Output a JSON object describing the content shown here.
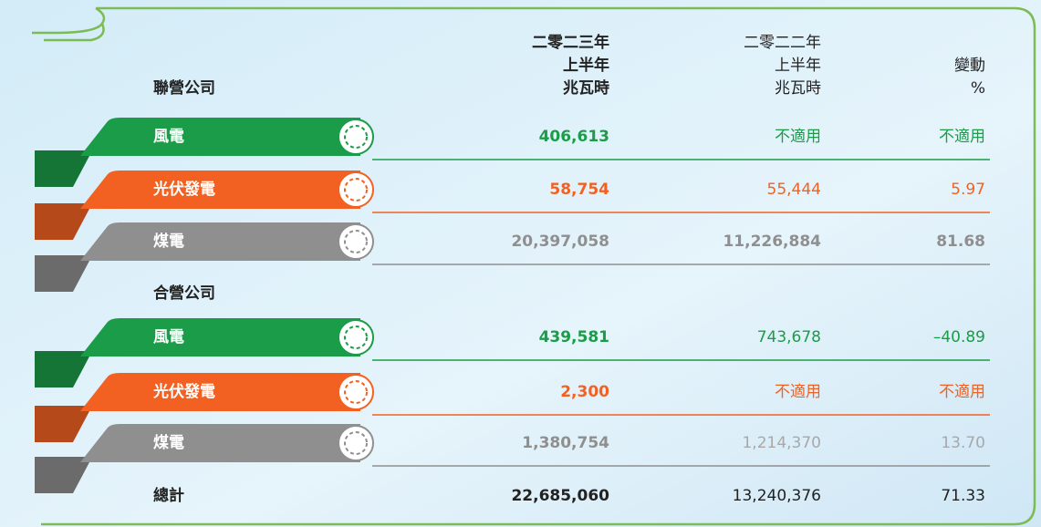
{
  "header": {
    "section": "聯營公司",
    "columns": [
      [
        "二零二三年",
        "上半年",
        "兆瓦時"
      ],
      [
        "二零二二年",
        "上半年",
        "兆瓦時"
      ],
      [
        "變動",
        "%"
      ]
    ]
  },
  "groups": [
    {
      "rows": [
        {
          "label": "風電",
          "color": "#1a9c48",
          "cells": [
            "406,613",
            "不適用",
            "不適用"
          ]
        },
        {
          "label": "光伏發電",
          "color": "#f26122",
          "cells": [
            "58,754",
            "55,444",
            "5.97"
          ]
        },
        {
          "label": "煤電",
          "color": "#8f8f8f",
          "cells": [
            "20,397,058",
            "11,226,884",
            "81.68"
          ]
        }
      ]
    },
    {
      "title": "合營公司",
      "rows": [
        {
          "label": "風電",
          "color": "#1a9c48",
          "cells": [
            "439,581",
            "743,678",
            "–40.89"
          ]
        },
        {
          "label": "光伏發電",
          "color": "#f26122",
          "cells": [
            "2,300",
            "不適用",
            "不適用"
          ]
        },
        {
          "label": "煤電",
          "color": "#8f8f8f",
          "cells": [
            "1,380,754",
            "1,214,370",
            "13.70"
          ]
        }
      ]
    }
  ],
  "total": {
    "label": "總計",
    "cells": [
      "22,685,060",
      "13,240,376",
      "71.33"
    ]
  }
}
